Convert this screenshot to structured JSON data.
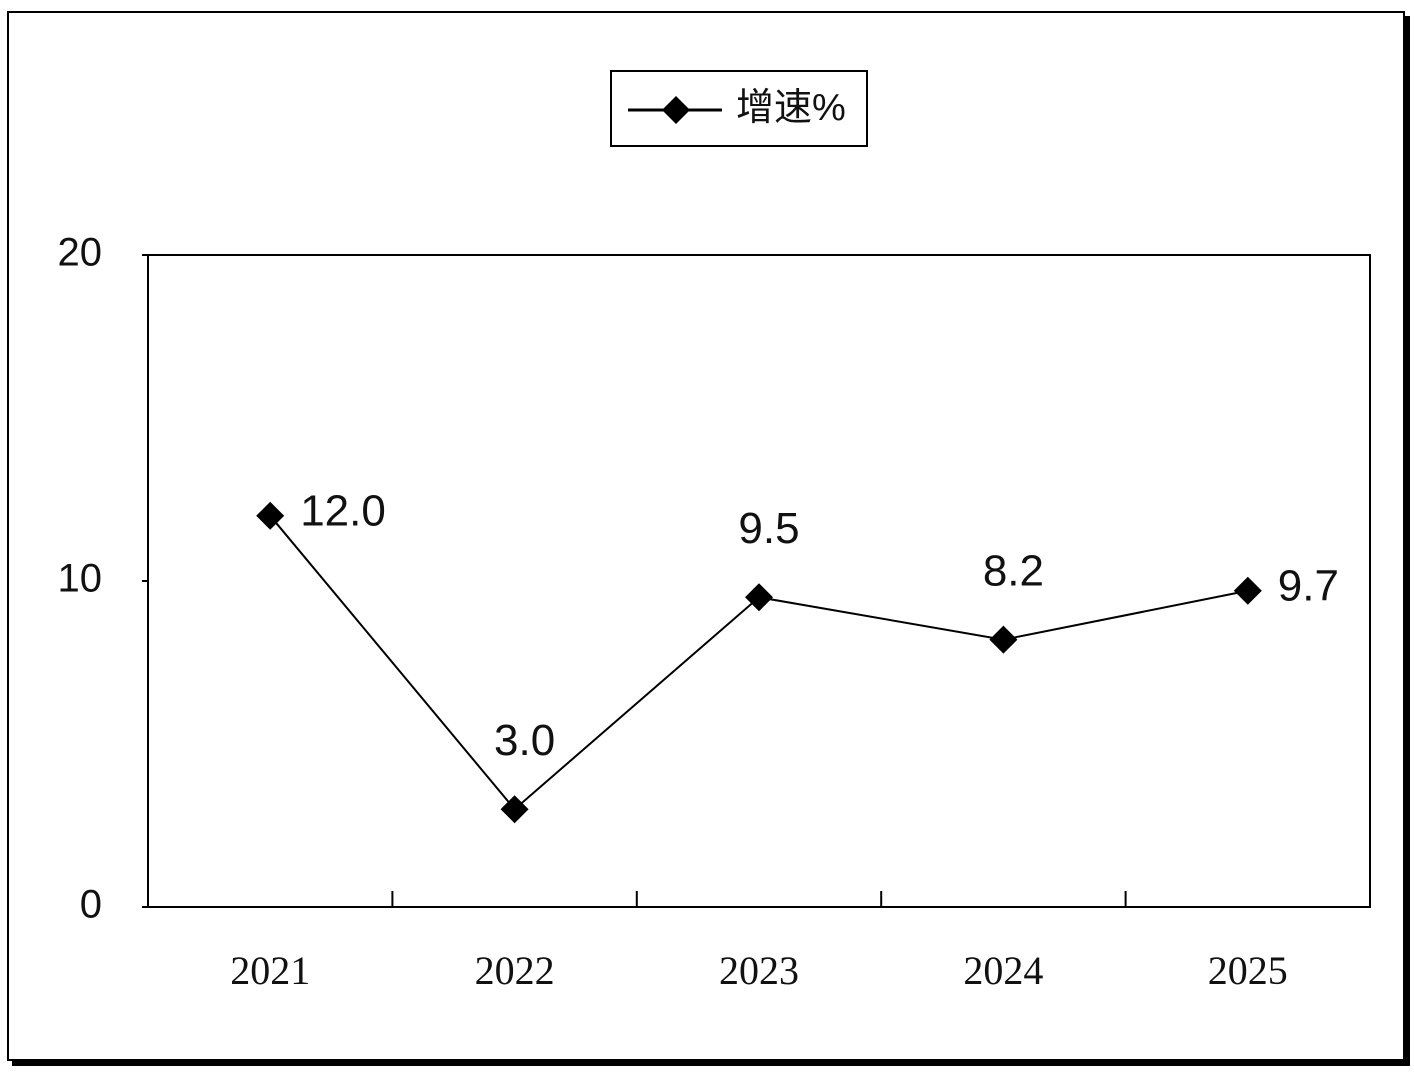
{
  "chart_data": {
    "type": "line",
    "legend_label": "增速%",
    "categories": [
      "2021",
      "2022",
      "2023",
      "2024",
      "2025"
    ],
    "series": [
      {
        "name": "增速%",
        "color": "#000000",
        "values": [
          12.0,
          3.0,
          9.5,
          8.2,
          9.7
        ],
        "value_labels": [
          "12.0",
          "3.0",
          "9.5",
          "8.2",
          "9.7"
        ]
      }
    ],
    "ylim": [
      0,
      20
    ],
    "yticks": [
      0,
      10,
      20
    ],
    "grid": false,
    "legend": "top"
  }
}
